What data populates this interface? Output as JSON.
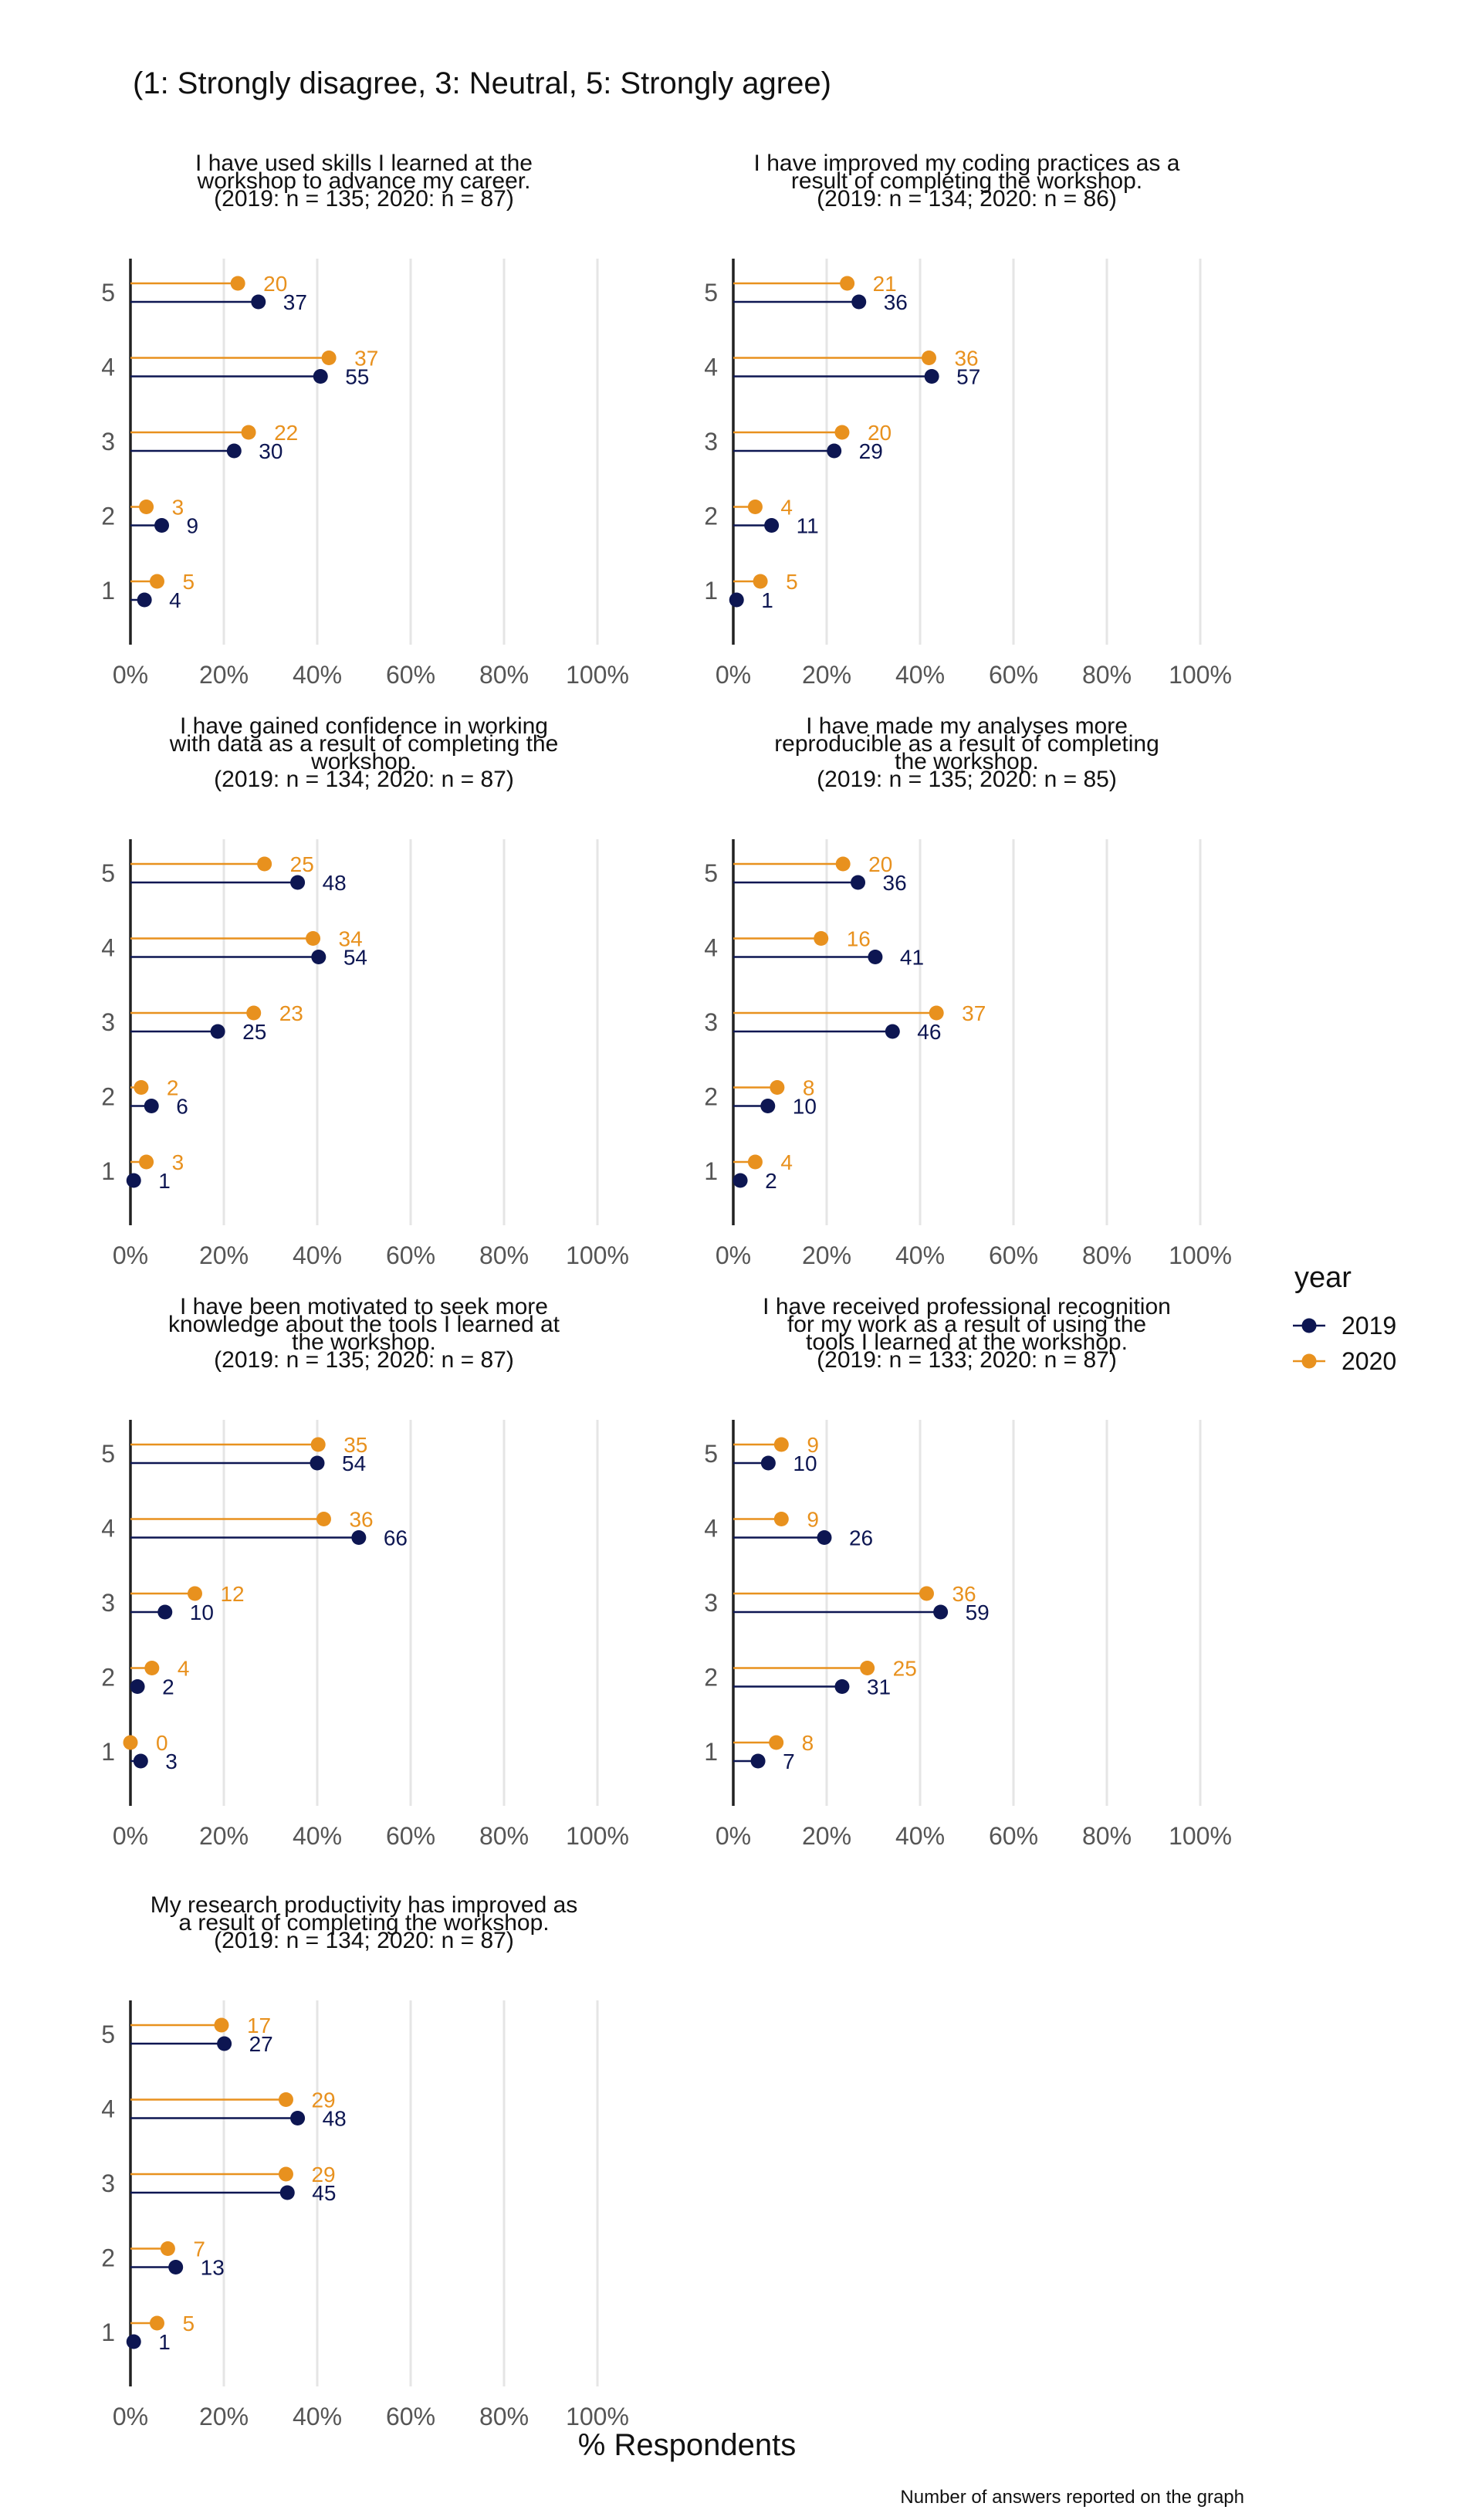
{
  "subtitle": "(1: Strongly disagree, 3: Neutral, 5: Strongly agree)",
  "xlabel": "% Respondents",
  "caption": "Number of answers reported on the graph",
  "legend": {
    "title": "year",
    "items": [
      {
        "label": "2019",
        "color": "#0d1652"
      },
      {
        "label": "2020",
        "color": "#e8911e"
      }
    ]
  },
  "colors": {
    "y2019": "#0d1652",
    "y2020": "#e8911e",
    "grid": "#e5e5e5",
    "axis": "#222222",
    "tick": "#555555"
  },
  "chart_data": [
    {
      "type": "lollipop",
      "title_lines": [
        "I have used skills I learned at the",
        "workshop to advance my career.",
        "(2019: n = 135; 2020: n = 87)"
      ],
      "categories": [
        "5",
        "4",
        "3",
        "2",
        "1"
      ],
      "xlim": [
        0,
        100
      ],
      "xticks": [
        "0%",
        "20%",
        "40%",
        "60%",
        "80%",
        "100%"
      ],
      "series": [
        {
          "name": "2020",
          "counts": [
            20,
            37,
            22,
            3,
            5
          ],
          "percent": [
            23,
            42.5,
            25.3,
            3.4,
            5.7
          ]
        },
        {
          "name": "2019",
          "counts": [
            37,
            55,
            30,
            9,
            4
          ],
          "percent": [
            27.4,
            40.7,
            22.2,
            6.7,
            3
          ]
        }
      ]
    },
    {
      "type": "lollipop",
      "title_lines": [
        "I have improved my coding practices as a",
        "result of completing the workshop.",
        "(2019: n = 134; 2020: n = 86)"
      ],
      "categories": [
        "5",
        "4",
        "3",
        "2",
        "1"
      ],
      "xlim": [
        0,
        100
      ],
      "xticks": [
        "0%",
        "20%",
        "40%",
        "60%",
        "80%",
        "100%"
      ],
      "series": [
        {
          "name": "2020",
          "counts": [
            21,
            36,
            20,
            4,
            5
          ],
          "percent": [
            24.4,
            41.9,
            23.3,
            4.7,
            5.8
          ]
        },
        {
          "name": "2019",
          "counts": [
            36,
            57,
            29,
            11,
            1
          ],
          "percent": [
            26.9,
            42.5,
            21.6,
            8.2,
            0.7
          ]
        }
      ]
    },
    {
      "type": "lollipop",
      "title_lines": [
        "I have gained confidence in working",
        "with data as a result of completing the",
        "workshop.",
        "(2019: n = 134; 2020: n = 87)"
      ],
      "categories": [
        "5",
        "4",
        "3",
        "2",
        "1"
      ],
      "xlim": [
        0,
        100
      ],
      "xticks": [
        "0%",
        "20%",
        "40%",
        "60%",
        "80%",
        "100%"
      ],
      "series": [
        {
          "name": "2020",
          "counts": [
            25,
            34,
            23,
            2,
            3
          ],
          "percent": [
            28.7,
            39.1,
            26.4,
            2.3,
            3.4
          ]
        },
        {
          "name": "2019",
          "counts": [
            48,
            54,
            25,
            6,
            1
          ],
          "percent": [
            35.8,
            40.3,
            18.7,
            4.5,
            0.7
          ]
        }
      ]
    },
    {
      "type": "lollipop",
      "title_lines": [
        "I have made my analyses more",
        "reproducible as a result of completing",
        "the workshop.",
        "(2019: n = 135; 2020: n = 85)"
      ],
      "categories": [
        "5",
        "4",
        "3",
        "2",
        "1"
      ],
      "xlim": [
        0,
        100
      ],
      "xticks": [
        "0%",
        "20%",
        "40%",
        "60%",
        "80%",
        "100%"
      ],
      "series": [
        {
          "name": "2020",
          "counts": [
            20,
            16,
            37,
            8,
            4
          ],
          "percent": [
            23.5,
            18.8,
            43.5,
            9.4,
            4.7
          ]
        },
        {
          "name": "2019",
          "counts": [
            36,
            41,
            46,
            10,
            2
          ],
          "percent": [
            26.7,
            30.4,
            34.1,
            7.4,
            1.5
          ]
        }
      ]
    },
    {
      "type": "lollipop",
      "title_lines": [
        "I have been motivated to seek more",
        "knowledge about the tools I learned at",
        "the workshop.",
        "(2019: n = 135; 2020: n = 87)"
      ],
      "categories": [
        "5",
        "4",
        "3",
        "2",
        "1"
      ],
      "xlim": [
        0,
        100
      ],
      "xticks": [
        "0%",
        "20%",
        "40%",
        "60%",
        "80%",
        "100%"
      ],
      "series": [
        {
          "name": "2020",
          "counts": [
            35,
            36,
            12,
            4,
            0
          ],
          "percent": [
            40.2,
            41.4,
            13.8,
            4.6,
            0
          ]
        },
        {
          "name": "2019",
          "counts": [
            54,
            66,
            10,
            2,
            3
          ],
          "percent": [
            40,
            48.9,
            7.4,
            1.5,
            2.2
          ]
        }
      ]
    },
    {
      "type": "lollipop",
      "title_lines": [
        "I have received professional recognition",
        "for my work as a result of using the",
        "tools I learned at the workshop.",
        "(2019: n = 133; 2020: n = 87)"
      ],
      "categories": [
        "5",
        "4",
        "3",
        "2",
        "1"
      ],
      "xlim": [
        0,
        100
      ],
      "xticks": [
        "0%",
        "20%",
        "40%",
        "60%",
        "80%",
        "100%"
      ],
      "series": [
        {
          "name": "2020",
          "counts": [
            9,
            9,
            36,
            25,
            8
          ],
          "percent": [
            10.3,
            10.3,
            41.4,
            28.7,
            9.2
          ]
        },
        {
          "name": "2019",
          "counts": [
            10,
            26,
            59,
            31,
            7
          ],
          "percent": [
            7.5,
            19.5,
            44.4,
            23.3,
            5.3
          ]
        }
      ]
    },
    {
      "type": "lollipop",
      "title_lines": [
        "My research productivity has improved as",
        "a result of completing the workshop.",
        "(2019: n = 134; 2020: n = 87)"
      ],
      "categories": [
        "5",
        "4",
        "3",
        "2",
        "1"
      ],
      "xlim": [
        0,
        100
      ],
      "xticks": [
        "0%",
        "20%",
        "40%",
        "60%",
        "80%",
        "100%"
      ],
      "series": [
        {
          "name": "2020",
          "counts": [
            17,
            29,
            29,
            7,
            5
          ],
          "percent": [
            19.5,
            33.3,
            33.3,
            8,
            5.7
          ]
        },
        {
          "name": "2019",
          "counts": [
            27,
            48,
            45,
            13,
            1
          ],
          "percent": [
            20.1,
            35.8,
            33.6,
            9.7,
            0.7
          ]
        }
      ]
    }
  ]
}
